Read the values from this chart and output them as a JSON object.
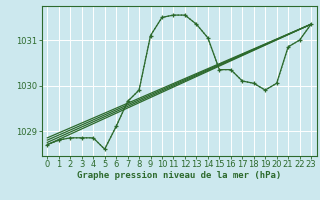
{
  "title": "Graphe pression niveau de la mer (hPa)",
  "bg_color": "#cce8ee",
  "grid_color": "#ffffff",
  "line_color": "#2d6a2d",
  "xlim": [
    -0.5,
    23.5
  ],
  "ylim": [
    1028.45,
    1031.75
  ],
  "yticks": [
    1029,
    1030,
    1031
  ],
  "xticks": [
    0,
    1,
    2,
    3,
    4,
    5,
    6,
    7,
    8,
    9,
    10,
    11,
    12,
    13,
    14,
    15,
    16,
    17,
    18,
    19,
    20,
    21,
    22,
    23
  ],
  "main_curve": {
    "x": [
      0,
      1,
      2,
      3,
      4,
      5,
      6,
      7,
      8,
      9,
      10,
      11,
      12,
      13,
      14,
      15,
      16,
      17,
      18,
      19,
      20,
      21,
      22,
      23
    ],
    "y": [
      1028.7,
      1028.8,
      1028.85,
      1028.85,
      1028.85,
      1028.6,
      1029.1,
      1029.65,
      1029.9,
      1031.1,
      1031.5,
      1031.55,
      1031.55,
      1031.35,
      1031.05,
      1030.35,
      1030.35,
      1030.1,
      1030.05,
      1029.9,
      1030.05,
      1030.85,
      1031.0,
      1031.35
    ]
  },
  "dotted_curve": {
    "x": [
      0,
      1,
      2,
      3,
      4,
      5,
      6,
      7,
      8,
      9,
      10,
      11,
      12,
      13,
      14,
      15,
      16,
      17,
      18,
      19,
      20,
      21,
      22,
      23
    ],
    "y": [
      1028.7,
      1028.8,
      1028.85,
      1028.85,
      1028.85,
      1028.6,
      1029.1,
      1029.65,
      1029.9,
      1031.1,
      1031.5,
      1031.55,
      1031.55,
      1031.35,
      1031.05,
      1030.35,
      1030.35,
      1030.1,
      1030.05,
      1029.9,
      1030.05,
      1030.85,
      1031.0,
      1031.35
    ]
  },
  "straight_lines": [
    {
      "x": [
        0,
        23
      ],
      "y": [
        1028.7,
        1031.35
      ]
    },
    {
      "x": [
        0,
        23
      ],
      "y": [
        1028.75,
        1031.35
      ]
    },
    {
      "x": [
        0,
        23
      ],
      "y": [
        1028.8,
        1031.35
      ]
    },
    {
      "x": [
        0,
        23
      ],
      "y": [
        1028.85,
        1031.35
      ]
    }
  ],
  "xlabel_fontsize": 6.5,
  "tick_fontsize": 6,
  "linewidth": 0.9
}
